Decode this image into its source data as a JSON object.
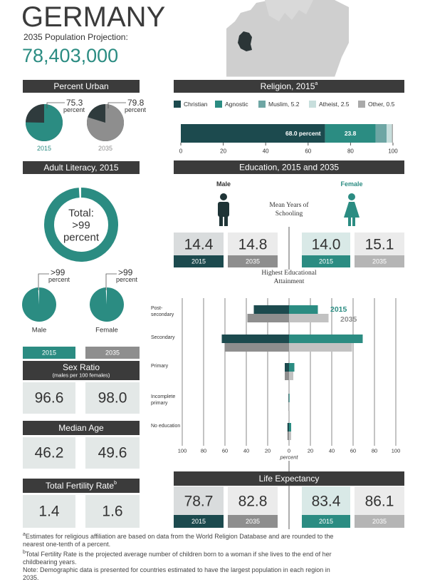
{
  "header": {
    "title": "GERMANY",
    "subtitle": "2035 Population Projection:",
    "population": "78,403,000"
  },
  "chart_data": [
    {
      "type": "pie",
      "title": "Percent Urban",
      "categories": [
        "2015",
        "2035"
      ],
      "values": [
        75.3,
        79.8
      ],
      "unit": "percent",
      "colors": [
        "#2b8c82",
        "#8e8e8e"
      ],
      "rest_color": "#2f3b3d"
    },
    {
      "type": "stacked-bar",
      "title": "Religion, 2015",
      "title_note": "a",
      "series": [
        {
          "name": "Christian",
          "color": "#1c4a4e",
          "values": [
            68.0
          ],
          "value_labels": [
            "68.0 percent"
          ]
        },
        {
          "name": "Agnostic",
          "color": "#2b8c82",
          "values": [
            23.8
          ],
          "value_labels": [
            "23.8"
          ]
        },
        {
          "name": "Muslim, 5.2",
          "color": "#6ea6a4",
          "values": [
            5.2
          ]
        },
        {
          "name": "Atheist, 2.5",
          "color": "#c7dedc",
          "values": [
            2.5
          ]
        },
        {
          "name": "Other, 0.5",
          "color": "#a9a9a9",
          "values": [
            0.5
          ]
        }
      ],
      "xlim": [
        0,
        100
      ],
      "xticks": [
        0,
        20,
        40,
        60,
        80,
        100
      ]
    },
    {
      "type": "donut",
      "title": "Adult Literacy, 2015",
      "categories": [
        "Total:",
        "Male",
        "Female"
      ],
      "values": [
        99,
        99,
        99
      ],
      "value_labels": [
        ">99",
        ">99",
        ">99"
      ],
      "unit": "percent",
      "color": "#2b8c82"
    },
    {
      "type": "butterfly",
      "title": "Highest Educational Attainment",
      "categories": [
        "Post-secondary",
        "Secondary",
        "Primary",
        "Incomplete primary",
        "No education"
      ],
      "series": [
        {
          "name": "2015",
          "color": "#2b8c82",
          "male_color": "#1c4a4e",
          "female_color": "#2b8c82",
          "male": [
            33,
            63,
            4,
            0.5,
            1.5
          ],
          "female": [
            27,
            69,
            5,
            0.5,
            2
          ]
        },
        {
          "name": "2035",
          "color": "#8e8e8e",
          "male_color": "#8e8e8e",
          "female_color": "#c2c2c2",
          "male": [
            39,
            60,
            4,
            0.5,
            1.5
          ],
          "female": [
            37,
            59,
            4,
            0.5,
            2
          ]
        }
      ],
      "xlim": [
        -100,
        100
      ],
      "xticks": [
        {
          "value": -100,
          "label": "100"
        },
        {
          "value": -80,
          "label": "80"
        },
        {
          "value": -60,
          "label": "60"
        },
        {
          "value": -40,
          "label": "40"
        },
        {
          "value": -20,
          "label": "20"
        },
        0,
        20,
        40,
        60,
        80,
        100
      ],
      "xlabel": "percent"
    }
  ],
  "years": [
    "2015",
    "2035"
  ],
  "education": {
    "title": "Education, 2015 and 2035",
    "metric": "Mean Years of Schooling",
    "groups": [
      {
        "name": "Male",
        "values": [
          "14.4",
          "14.8"
        ]
      },
      {
        "name": "Female",
        "values": [
          "14.0",
          "15.1"
        ]
      }
    ]
  },
  "life_expectancy": {
    "title": "Life Expectancy",
    "groups": [
      [
        "78.7",
        "82.8"
      ],
      [
        "83.4",
        "86.1"
      ]
    ]
  },
  "stats": [
    {
      "title": "Sex Ratio",
      "subtitle": "(males per 100 females)",
      "values": [
        "96.6",
        "98.0"
      ]
    },
    {
      "title": "Median Age",
      "values": [
        "46.2",
        "49.6"
      ]
    },
    {
      "title": "Total Fertility Rate",
      "note": "b",
      "values": [
        "1.4",
        "1.6"
      ]
    }
  ],
  "footnotes": [
    {
      "mark": "a",
      "text": "Estimates for religious affiliation are based on data from the World Religion Database and are rounded to the nearest one-tenth of a percent."
    },
    {
      "mark": "b",
      "text": "Total Fertility Rate is the projected average number of children born to a woman if she lives to the end of her childbearing years."
    },
    {
      "text": "Note: Demographic data is presented for countries estimated to have the largest population in each region in 2035."
    }
  ]
}
